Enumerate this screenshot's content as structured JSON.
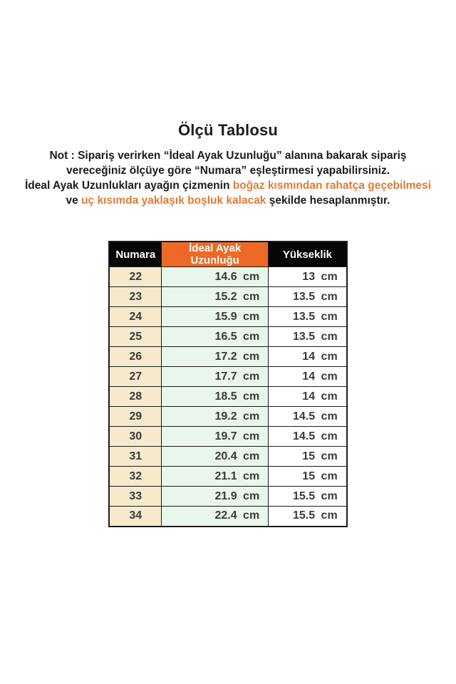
{
  "page": {
    "title": "Ölçü Tablosu"
  },
  "note": {
    "line1": "Not : Sipariş verirken “İdeal Ayak Uzunluğu” alanına bakarak sipariş",
    "line2": "vereceğiniz ölçüye göre “Numara” eşleştirmesi yapabilirsiniz.",
    "line3_black": "İdeal Ayak Uzunlukları ayağın çizmenin ",
    "line3_orange": "boğaz kısmından rahatça geçebilmesi",
    "line4_black1": "ve ",
    "line4_orange": "uç kısımda yaklaşık boşluk kalacak",
    "line4_black2": " şekilde hesaplanmıştır."
  },
  "colors": {
    "header_orange": "#ED6A26",
    "note_orange": "#E17B36",
    "col_numara_bg": "#F6EACC",
    "col_length_bg": "#E8F6EB",
    "header_black": "#060606"
  },
  "table": {
    "headers": {
      "numara": "Numara",
      "uzunluk": "İdeal Ayak Uzunluğu",
      "yukseklik": "Yükseklik"
    },
    "rows": [
      {
        "numara": "22",
        "uzunluk": "14.6 cm",
        "yukseklik": "13 cm"
      },
      {
        "numara": "23",
        "uzunluk": "15.2 cm",
        "yukseklik": "13.5 cm"
      },
      {
        "numara": "24",
        "uzunluk": "15.9 cm",
        "yukseklik": "13.5 cm"
      },
      {
        "numara": "25",
        "uzunluk": "16.5 cm",
        "yukseklik": "13.5 cm"
      },
      {
        "numara": "26",
        "uzunluk": "17.2 cm",
        "yukseklik": "14 cm"
      },
      {
        "numara": "27",
        "uzunluk": "17.7 cm",
        "yukseklik": "14 cm"
      },
      {
        "numara": "28",
        "uzunluk": "18.5 cm",
        "yukseklik": "14 cm"
      },
      {
        "numara": "29",
        "uzunluk": "19.2 cm",
        "yukseklik": "14.5 cm"
      },
      {
        "numara": "30",
        "uzunluk": "19.7 cm",
        "yukseklik": "14.5 cm"
      },
      {
        "numara": "31",
        "uzunluk": "20.4 cm",
        "yukseklik": "15 cm"
      },
      {
        "numara": "32",
        "uzunluk": "21.1 cm",
        "yukseklik": "15 cm"
      },
      {
        "numara": "33",
        "uzunluk": "21.9 cm",
        "yukseklik": "15.5 cm"
      },
      {
        "numara": "34",
        "uzunluk": "22.4 cm",
        "yukseklik": "15.5 cm"
      }
    ]
  }
}
